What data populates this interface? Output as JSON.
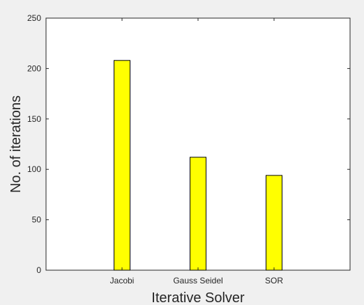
{
  "chart_data": {
    "type": "bar",
    "title": "",
    "xlabel": "Iterative Solver",
    "ylabel": "No. of iterations",
    "categories": [
      "Jacobi",
      "Gauss Seidel",
      "SOR"
    ],
    "values": [
      208,
      112,
      94
    ],
    "ylim": [
      0,
      250
    ],
    "yticks": [
      0,
      50,
      100,
      150,
      200,
      250
    ],
    "bar_color": "#ffff00",
    "bar_edge_color": "#000000",
    "grid": false,
    "legend": "none"
  }
}
